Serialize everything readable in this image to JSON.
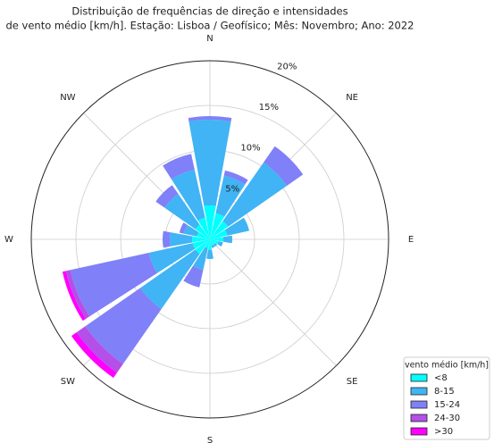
{
  "chart_data": {
    "type": "windrose",
    "title": [
      "Distribuição de frequências de direção e intensidades",
      "de vento médio [km/h]. Estação: Lisboa / Geofísico; Mês: Novembro; Ano: 2022"
    ],
    "categories": [
      "N",
      null,
      "NE",
      null,
      "E",
      null,
      "SE",
      null,
      "S",
      null,
      "SW",
      null,
      "W",
      null,
      "NW",
      null
    ],
    "series": [
      {
        "name": "<8",
        "color": "#00ffff",
        "values": [
          3.8,
          3,
          2.5,
          2,
          1.5,
          1,
          0.7,
          0.7,
          1.2,
          1,
          2,
          2,
          2,
          1.5,
          2,
          2.5
        ]
      },
      {
        "name": "8-15",
        "color": "#40b4f4",
        "values": [
          9.6,
          4.3,
          8,
          2.5,
          1,
          0.5,
          0.3,
          0.3,
          1,
          2.5,
          7.5,
          5,
          2.5,
          1.5,
          4.2,
          5.5
        ]
      },
      {
        "name": "15-24",
        "color": "#8080f8",
        "values": [
          0.4,
          0.6,
          2.2,
          0,
          0,
          0,
          0,
          0,
          0,
          2,
          7.5,
          9,
          0.8,
          0.5,
          1.2,
          1.8
        ]
      },
      {
        "name": "24-30",
        "color": "#b450e8",
        "values": [
          0,
          0,
          0,
          0,
          0,
          0,
          0,
          0,
          0,
          0,
          1.2,
          0.5,
          0,
          0,
          0,
          0
        ]
      },
      {
        "name": ">30",
        "color": "#ff00ff",
        "values": [
          0,
          0,
          0,
          0,
          0,
          0,
          0,
          0,
          0,
          0,
          0.7,
          0.4,
          0,
          0,
          0,
          0
        ]
      }
    ],
    "rlim": [
      0,
      20
    ],
    "rticks": [
      {
        "value": 5,
        "label": "5%"
      },
      {
        "value": 10,
        "label": "10%"
      },
      {
        "value": 15,
        "label": "15%"
      },
      {
        "value": 20,
        "label": "20%"
      }
    ],
    "legend_title": "vento médio [km/h]",
    "legend": "lower right",
    "grid": true
  }
}
